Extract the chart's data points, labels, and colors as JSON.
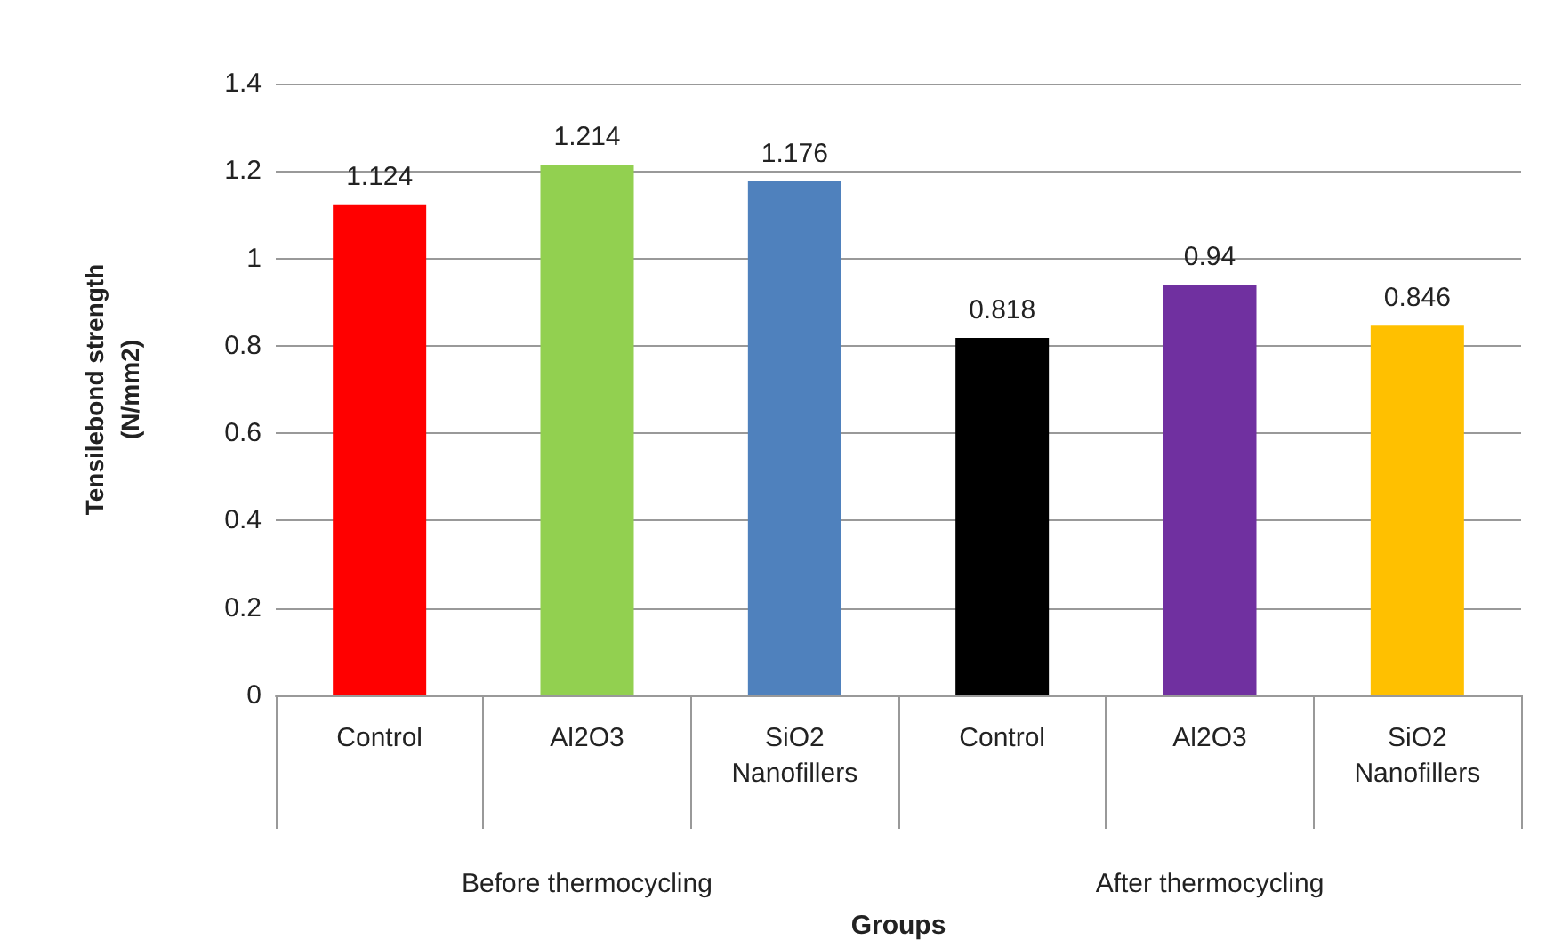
{
  "chart_data": {
    "type": "bar",
    "categories": [
      "Control",
      "Al2O3",
      "SiO2\nNanofillers",
      "Control",
      "Al2O3",
      "SiO2\nNanofillers"
    ],
    "values": [
      1.124,
      1.214,
      1.176,
      0.818,
      0.94,
      0.846
    ],
    "colors": [
      "#ff0000",
      "#92d050",
      "#4f81bd",
      "#000000",
      "#7030a0",
      "#ffc000"
    ],
    "data_labels": true,
    "xlabel": "Groups",
    "ylabel": "Tensilebond strength\n(N/mm2)",
    "ylim": [
      0,
      1.4
    ],
    "yticks": [
      0,
      0.2,
      0.4,
      0.6,
      0.8,
      1,
      1.2,
      1.4
    ],
    "grid": "y",
    "annotations": [
      "Before thermocycling",
      "After thermocycling"
    ]
  }
}
